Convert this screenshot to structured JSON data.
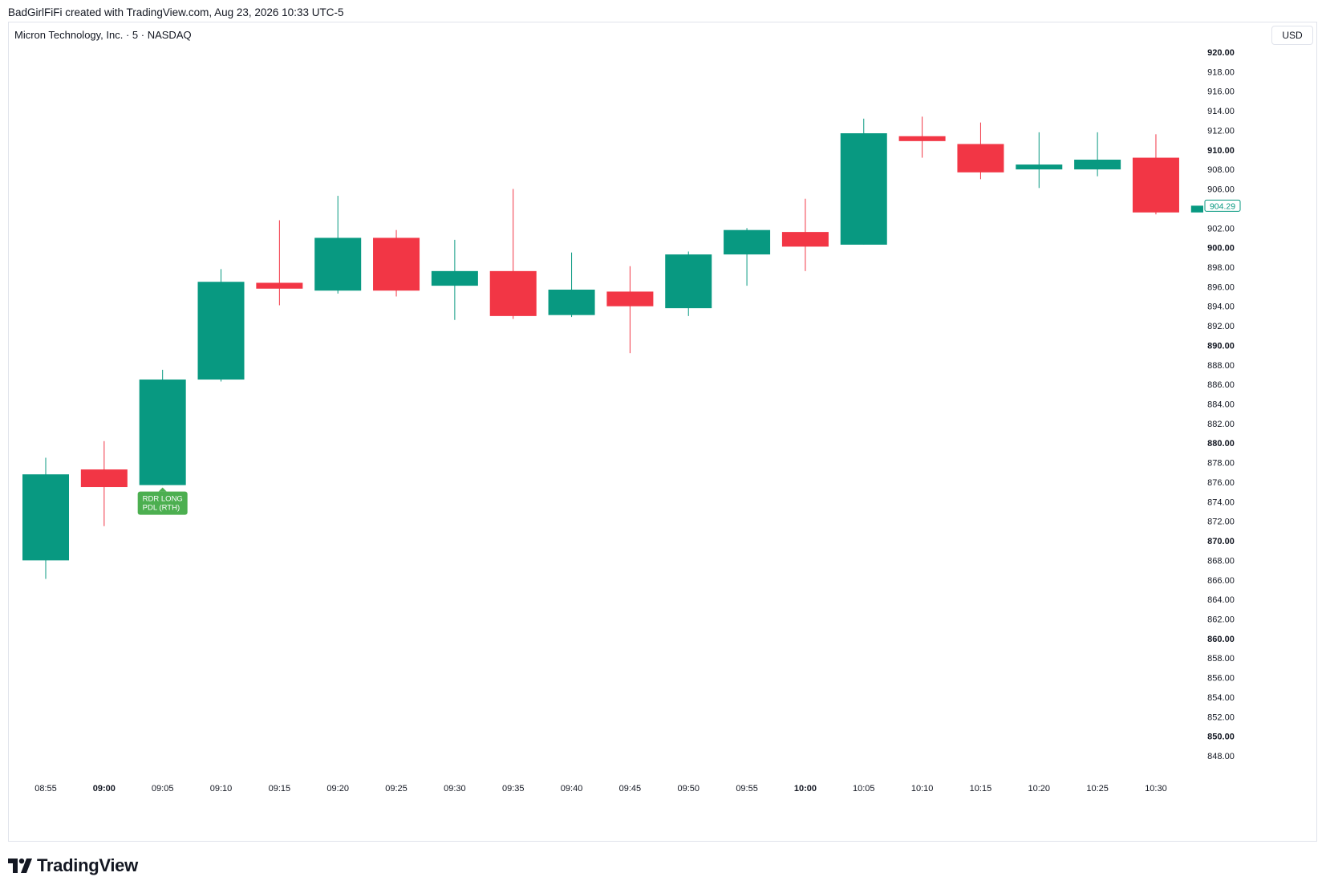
{
  "header": {
    "attribution": "BadGirlFiFi created with TradingView.com, Aug 23, 2026 10:33 UTC-5",
    "symbol_title": "Micron Technology, Inc. · 5 · NASDAQ",
    "currency": "USD"
  },
  "footer": {
    "logo_text": "TradingView"
  },
  "colors": {
    "up": "#089981",
    "down": "#f23645",
    "signal_bg": "#4caf50",
    "price_label": "#089981"
  },
  "chart_data": {
    "type": "candlestick",
    "title": "Micron Technology, Inc. · 5 · NASDAQ",
    "timeframe": "5",
    "currency": "USD",
    "ylim": [
      846,
      922
    ],
    "grid": false,
    "y_ticks": [
      {
        "value": 920,
        "label": "920.00",
        "bold": true
      },
      {
        "value": 918,
        "label": "918.00",
        "bold": false
      },
      {
        "value": 916,
        "label": "916.00",
        "bold": false
      },
      {
        "value": 914,
        "label": "914.00",
        "bold": false
      },
      {
        "value": 912,
        "label": "912.00",
        "bold": false
      },
      {
        "value": 910,
        "label": "910.00",
        "bold": true
      },
      {
        "value": 908,
        "label": "908.00",
        "bold": false
      },
      {
        "value": 906,
        "label": "906.00",
        "bold": false
      },
      {
        "value": 902,
        "label": "902.00",
        "bold": false
      },
      {
        "value": 900,
        "label": "900.00",
        "bold": true
      },
      {
        "value": 898,
        "label": "898.00",
        "bold": false
      },
      {
        "value": 896,
        "label": "896.00",
        "bold": false
      },
      {
        "value": 894,
        "label": "894.00",
        "bold": false
      },
      {
        "value": 892,
        "label": "892.00",
        "bold": false
      },
      {
        "value": 890,
        "label": "890.00",
        "bold": true
      },
      {
        "value": 888,
        "label": "888.00",
        "bold": false
      },
      {
        "value": 886,
        "label": "886.00",
        "bold": false
      },
      {
        "value": 884,
        "label": "884.00",
        "bold": false
      },
      {
        "value": 882,
        "label": "882.00",
        "bold": false
      },
      {
        "value": 880,
        "label": "880.00",
        "bold": true
      },
      {
        "value": 878,
        "label": "878.00",
        "bold": false
      },
      {
        "value": 876,
        "label": "876.00",
        "bold": false
      },
      {
        "value": 874,
        "label": "874.00",
        "bold": false
      },
      {
        "value": 872,
        "label": "872.00",
        "bold": false
      },
      {
        "value": 870,
        "label": "870.00",
        "bold": true
      },
      {
        "value": 868,
        "label": "868.00",
        "bold": false
      },
      {
        "value": 866,
        "label": "866.00",
        "bold": false
      },
      {
        "value": 864,
        "label": "864.00",
        "bold": false
      },
      {
        "value": 862,
        "label": "862.00",
        "bold": false
      },
      {
        "value": 860,
        "label": "860.00",
        "bold": true
      },
      {
        "value": 858,
        "label": "858.00",
        "bold": false
      },
      {
        "value": 856,
        "label": "856.00",
        "bold": false
      },
      {
        "value": 854,
        "label": "854.00",
        "bold": false
      },
      {
        "value": 852,
        "label": "852.00",
        "bold": false
      },
      {
        "value": 850,
        "label": "850.00",
        "bold": true
      },
      {
        "value": 848,
        "label": "848.00",
        "bold": false
      }
    ],
    "x_ticks": [
      {
        "label": "08:55",
        "bold": false
      },
      {
        "label": "09:00",
        "bold": true
      },
      {
        "label": "09:05",
        "bold": false
      },
      {
        "label": "09:10",
        "bold": false
      },
      {
        "label": "09:15",
        "bold": false
      },
      {
        "label": "09:20",
        "bold": false
      },
      {
        "label": "09:25",
        "bold": false
      },
      {
        "label": "09:30",
        "bold": false
      },
      {
        "label": "09:35",
        "bold": false
      },
      {
        "label": "09:40",
        "bold": false
      },
      {
        "label": "09:45",
        "bold": false
      },
      {
        "label": "09:50",
        "bold": false
      },
      {
        "label": "09:55",
        "bold": false
      },
      {
        "label": "10:00",
        "bold": true
      },
      {
        "label": "10:05",
        "bold": false
      },
      {
        "label": "10:10",
        "bold": false
      },
      {
        "label": "10:15",
        "bold": false
      },
      {
        "label": "10:20",
        "bold": false
      },
      {
        "label": "10:25",
        "bold": false
      },
      {
        "label": "10:30",
        "bold": false
      }
    ],
    "candles": [
      {
        "time": "08:55",
        "open": 868.0,
        "high": 878.5,
        "low": 866.1,
        "close": 876.8
      },
      {
        "time": "09:00",
        "open": 877.3,
        "high": 880.2,
        "low": 871.5,
        "close": 875.5
      },
      {
        "time": "09:05",
        "open": 875.7,
        "high": 887.5,
        "low": 875.7,
        "close": 886.5
      },
      {
        "time": "09:10",
        "open": 886.5,
        "high": 897.8,
        "low": 886.3,
        "close": 896.5
      },
      {
        "time": "09:15",
        "open": 896.4,
        "high": 902.8,
        "low": 894.1,
        "close": 895.8
      },
      {
        "time": "09:20",
        "open": 895.6,
        "high": 905.3,
        "low": 895.3,
        "close": 901.0
      },
      {
        "time": "09:25",
        "open": 901.0,
        "high": 901.8,
        "low": 895.0,
        "close": 895.6
      },
      {
        "time": "09:30",
        "open": 896.1,
        "high": 900.8,
        "low": 892.6,
        "close": 897.6
      },
      {
        "time": "09:35",
        "open": 897.6,
        "high": 906.0,
        "low": 892.7,
        "close": 893.0
      },
      {
        "time": "09:40",
        "open": 893.1,
        "high": 899.5,
        "low": 892.9,
        "close": 895.7
      },
      {
        "time": "09:45",
        "open": 895.5,
        "high": 898.1,
        "low": 889.2,
        "close": 894.0
      },
      {
        "time": "09:50",
        "open": 893.8,
        "high": 899.6,
        "low": 893.0,
        "close": 899.3
      },
      {
        "time": "09:55",
        "open": 899.3,
        "high": 902.0,
        "low": 896.1,
        "close": 901.8
      },
      {
        "time": "10:00",
        "open": 901.6,
        "high": 905.0,
        "low": 897.6,
        "close": 900.1
      },
      {
        "time": "10:05",
        "open": 900.3,
        "high": 913.2,
        "low": 900.3,
        "close": 911.7
      },
      {
        "time": "10:10",
        "open": 911.4,
        "high": 913.4,
        "low": 909.2,
        "close": 910.9
      },
      {
        "time": "10:15",
        "open": 910.6,
        "high": 912.8,
        "low": 907.0,
        "close": 907.7
      },
      {
        "time": "10:20",
        "open": 908.0,
        "high": 911.8,
        "low": 906.1,
        "close": 908.5
      },
      {
        "time": "10:25",
        "open": 908.0,
        "high": 911.8,
        "low": 907.3,
        "close": 909.0
      },
      {
        "time": "10:30",
        "open": 909.2,
        "high": 911.6,
        "low": 903.4,
        "close": 903.6
      },
      {
        "time": "10:35",
        "open": 903.6,
        "high": 904.3,
        "low": 903.6,
        "close": 904.29
      }
    ],
    "last_price": {
      "value": 904.29,
      "label": "904.29"
    },
    "annotations": [
      {
        "time": "09:05",
        "price": 875.7,
        "line1": "RDR LONG",
        "line2": "PDL (RTH)"
      }
    ]
  }
}
